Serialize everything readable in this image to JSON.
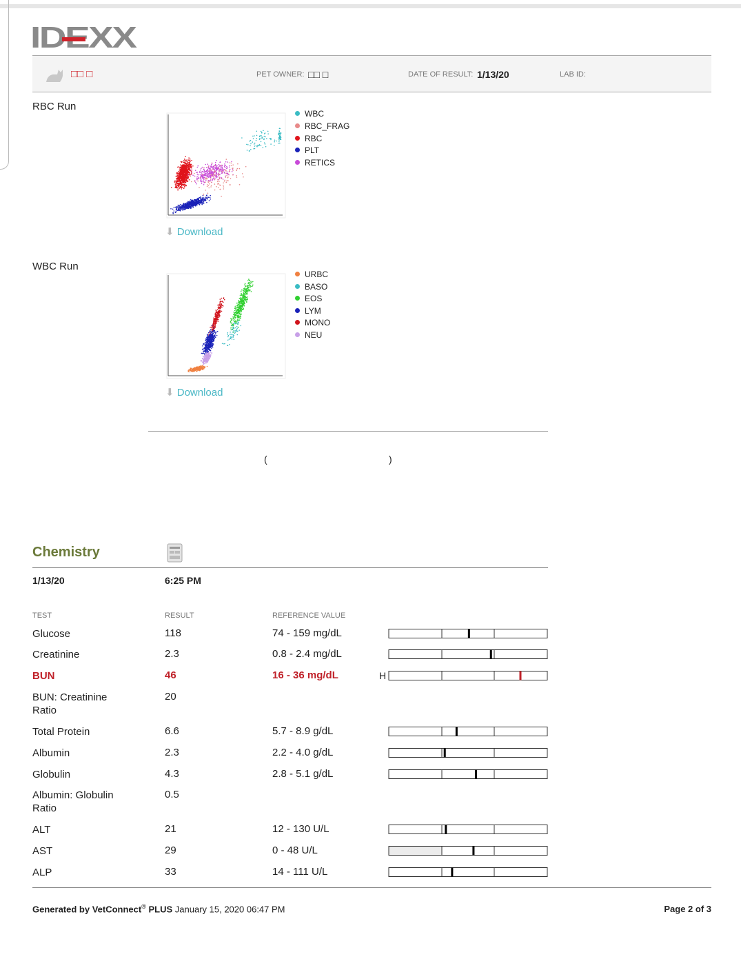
{
  "header": {
    "logo": "IDEXX",
    "pet_name": "□□ □",
    "pet_owner_label": "PET OWNER:",
    "pet_owner": "□□ □",
    "date_label": "DATE OF RESULT:",
    "date": "1/13/20",
    "lab_id_label": "LAB ID:"
  },
  "rbc_run": {
    "title": "RBC Run",
    "legend": [
      {
        "name": "WBC",
        "color": "#3bbcc4"
      },
      {
        "name": "RBC_FRAG",
        "color": "#e88a8a"
      },
      {
        "name": "RBC",
        "color": "#e0141c"
      },
      {
        "name": "PLT",
        "color": "#1a22b8"
      },
      {
        "name": "RETICS",
        "color": "#c84ad8"
      }
    ],
    "download": "Download"
  },
  "wbc_run": {
    "title": "WBC Run",
    "legend": [
      {
        "name": "URBC",
        "color": "#f08040"
      },
      {
        "name": "BASO",
        "color": "#3bbcc4"
      },
      {
        "name": "EOS",
        "color": "#30d030"
      },
      {
        "name": "LYM",
        "color": "#1a22b8"
      },
      {
        "name": "MONO",
        "color": "#d0141c"
      },
      {
        "name": "NEU",
        "color": "#c8a0e8"
      }
    ],
    "download": "Download"
  },
  "note": {
    "open": "(",
    "close": ")"
  },
  "chemistry": {
    "title": "Chemistry",
    "date": "1/13/20",
    "time": "6:25 PM",
    "columns": [
      "TEST",
      "RESULT",
      "REFERENCE VALUE"
    ],
    "rows": [
      {
        "test": "Glucose",
        "result": 118,
        "reference": "74 - 159 mg/dL"
      },
      {
        "test": "Creatinine",
        "result": 2.3,
        "reference": "0.8 - 2.4 mg/dL"
      },
      {
        "test": "BUN",
        "result": 46,
        "reference": "16 - 36 mg/dL",
        "flag": "H"
      },
      {
        "test": "BUN: Creatinine Ratio",
        "result": 20
      },
      {
        "test": "Total Protein",
        "result": 6.6,
        "reference": "5.7 - 8.9 g/dL"
      },
      {
        "test": "Albumin",
        "result": 2.3,
        "reference": "2.2 - 4.0 g/dL"
      },
      {
        "test": "Globulin",
        "result": 4.3,
        "reference": "2.8 - 5.1 g/dL"
      },
      {
        "test": "Albumin: Globulin Ratio",
        "result": 0.5
      },
      {
        "test": "ALT",
        "result": 21,
        "reference": "12 - 130 U/L"
      },
      {
        "test": "AST",
        "result": 29,
        "reference": "0 - 48 U/L"
      },
      {
        "test": "ALP",
        "result": 33,
        "reference": "14 - 111 U/L"
      }
    ]
  },
  "footer": {
    "generated_by": "Generated by VetConnect",
    "registered": "®",
    "product": "PLUS",
    "timestamp": "January 15, 2020 06:47 PM",
    "page": "Page 2 of 3"
  }
}
